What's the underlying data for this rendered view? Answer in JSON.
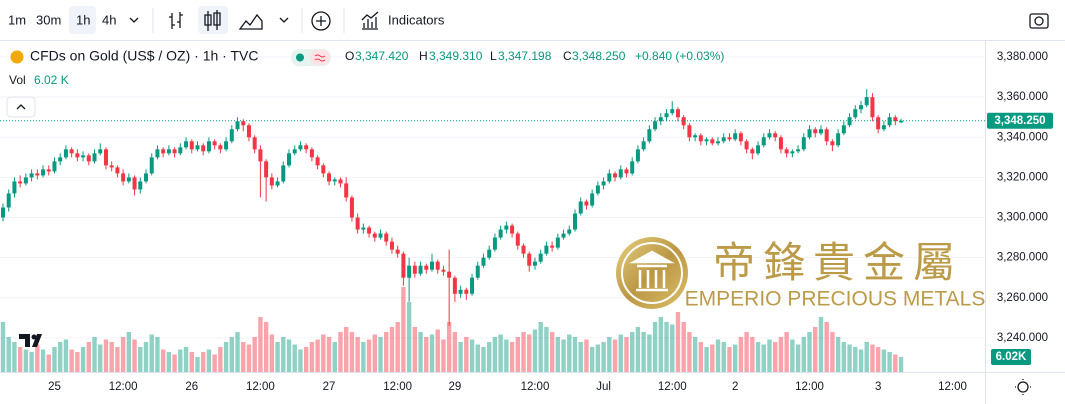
{
  "toolbar": {
    "intervals": [
      "1m",
      "30m",
      "1h",
      "4h"
    ],
    "indicators": "Indicators"
  },
  "watermark": {
    "chinese": "帝鋒貴金屬",
    "english": "EMPERIO PRECIOUS METALS"
  },
  "chart_data": {
    "type": "candlestick",
    "title": "CFDs on Gold (US$ / OZ) · 1h · TVC",
    "legend_ohlc": [
      {
        "label": "O",
        "value": "3,347.420"
      },
      {
        "label": "H",
        "value": "3,349.310"
      },
      {
        "label": "L",
        "value": "3,347.198"
      },
      {
        "label": "C",
        "value": "3,348.250"
      }
    ],
    "change": "+0.840 (+0.03%)",
    "volume_title": "Vol",
    "volume_value_label": "6.02 K",
    "volume_badge": "6.02K",
    "last_price_label": "3,348.250",
    "up_color": "#089981",
    "down_color": "#f23645",
    "volume_up_color": "rgba(8,153,129,0.45)",
    "volume_down_color": "rgba(242,54,69,0.45)",
    "grid": true,
    "ylim": [
      3223,
      3387.5
    ],
    "yticks": [
      {
        "value": 3240,
        "label": "3,240.000"
      },
      {
        "value": 3260,
        "label": "3,260.000"
      },
      {
        "value": 3280,
        "label": "3,280.000"
      },
      {
        "value": 3300,
        "label": "3,300.000"
      },
      {
        "value": 3320,
        "label": "3,320.000"
      },
      {
        "value": 3340,
        "label": "3,340.000"
      },
      {
        "value": 3360,
        "label": "3,360.000"
      },
      {
        "value": 3380,
        "label": "3,380.000"
      }
    ],
    "volume_ylim": [
      0,
      132000
    ],
    "categories": [
      null,
      null,
      null,
      null,
      null,
      null,
      null,
      null,
      null,
      "25",
      null,
      null,
      null,
      null,
      null,
      null,
      null,
      null,
      null,
      null,
      null,
      "12:00",
      null,
      null,
      null,
      null,
      null,
      null,
      null,
      null,
      null,
      null,
      null,
      "26",
      null,
      null,
      null,
      null,
      null,
      null,
      null,
      null,
      null,
      null,
      null,
      "12:00",
      null,
      null,
      null,
      null,
      null,
      null,
      null,
      null,
      null,
      null,
      null,
      "27",
      null,
      null,
      null,
      null,
      null,
      null,
      null,
      null,
      null,
      null,
      null,
      "12:00",
      null,
      null,
      null,
      null,
      null,
      null,
      null,
      null,
      null,
      "29",
      null,
      null,
      null,
      null,
      null,
      null,
      null,
      null,
      null,
      null,
      null,
      null,
      null,
      "12:00",
      null,
      null,
      null,
      null,
      null,
      null,
      null,
      null,
      null,
      null,
      null,
      "Jul",
      null,
      null,
      null,
      null,
      null,
      null,
      null,
      null,
      null,
      null,
      null,
      "12:00",
      null,
      null,
      null,
      null,
      null,
      null,
      null,
      null,
      null,
      null,
      "2",
      null,
      null,
      null,
      null,
      null,
      null,
      null,
      null,
      null,
      null,
      null,
      null,
      "12:00",
      null,
      null,
      null,
      null,
      null,
      null,
      null,
      null,
      null,
      null,
      null,
      "3",
      null,
      null,
      null,
      null,
      null,
      null,
      null,
      null,
      null,
      null,
      null,
      null,
      "12:00",
      null,
      null,
      null
    ],
    "ohlc": [
      [
        3300,
        3307,
        3298,
        3305
      ],
      [
        3305,
        3314,
        3303,
        3312
      ],
      [
        3312,
        3320,
        3310,
        3318
      ],
      [
        3318,
        3321,
        3315,
        3317
      ],
      [
        3317,
        3322,
        3316,
        3320
      ],
      [
        3320,
        3324,
        3318,
        3322
      ],
      [
        3322,
        3324,
        3319,
        3321
      ],
      [
        3321,
        3326,
        3320,
        3324
      ],
      [
        3324,
        3326,
        3321,
        3323
      ],
      [
        3323,
        3330,
        3322,
        3328
      ],
      [
        3328,
        3332,
        3326,
        3330
      ],
      [
        3330,
        3336,
        3329,
        3334
      ],
      [
        3334,
        3335,
        3330,
        3332
      ],
      [
        3332,
        3334,
        3328,
        3330
      ],
      [
        3330,
        3333,
        3328,
        3331
      ],
      [
        3331,
        3332,
        3326,
        3328
      ],
      [
        3328,
        3334,
        3327,
        3332
      ],
      [
        3332,
        3337,
        3331,
        3334
      ],
      [
        3334,
        3335,
        3324,
        3326
      ],
      [
        3326,
        3328,
        3323,
        3325
      ],
      [
        3325,
        3326,
        3320,
        3322
      ],
      [
        3322,
        3324,
        3316,
        3318
      ],
      [
        3318,
        3322,
        3317,
        3320
      ],
      [
        3320,
        3321,
        3311,
        3314
      ],
      [
        3314,
        3320,
        3312,
        3318
      ],
      [
        3318,
        3324,
        3317,
        3322
      ],
      [
        3322,
        3332,
        3321,
        3330
      ],
      [
        3330,
        3336,
        3329,
        3334
      ],
      [
        3334,
        3335,
        3330,
        3332
      ],
      [
        3332,
        3336,
        3331,
        3334
      ],
      [
        3334,
        3335,
        3330,
        3332
      ],
      [
        3332,
        3337,
        3331,
        3335
      ],
      [
        3335,
        3340,
        3334,
        3338
      ],
      [
        3338,
        3339,
        3332,
        3334
      ],
      [
        3334,
        3338,
        3333,
        3336
      ],
      [
        3336,
        3337,
        3331,
        3333
      ],
      [
        3333,
        3340,
        3332,
        3338
      ],
      [
        3338,
        3339,
        3334,
        3336
      ],
      [
        3336,
        3337,
        3332,
        3334
      ],
      [
        3334,
        3340,
        3333,
        3338
      ],
      [
        3338,
        3346,
        3337,
        3344
      ],
      [
        3344,
        3350,
        3343,
        3348
      ],
      [
        3348,
        3349,
        3343,
        3346
      ],
      [
        3346,
        3347,
        3338,
        3340
      ],
      [
        3340,
        3341,
        3332,
        3334
      ],
      [
        3334,
        3336,
        3310,
        3328
      ],
      [
        3328,
        3329,
        3308,
        3320
      ],
      [
        3320,
        3322,
        3314,
        3316
      ],
      [
        3316,
        3320,
        3315,
        3318
      ],
      [
        3318,
        3328,
        3317,
        3326
      ],
      [
        3326,
        3334,
        3325,
        3332
      ],
      [
        3332,
        3336,
        3331,
        3334
      ],
      [
        3334,
        3338,
        3333,
        3336
      ],
      [
        3336,
        3337,
        3332,
        3334
      ],
      [
        3334,
        3335,
        3328,
        3330
      ],
      [
        3330,
        3331,
        3324,
        3326
      ],
      [
        3326,
        3327,
        3320,
        3322
      ],
      [
        3322,
        3323,
        3316,
        3318
      ],
      [
        3318,
        3320,
        3316,
        3319
      ],
      [
        3319,
        3320,
        3315,
        3317
      ],
      [
        3317,
        3320,
        3308,
        3310
      ],
      [
        3310,
        3311,
        3298,
        3300
      ],
      [
        3300,
        3302,
        3292,
        3294
      ],
      [
        3294,
        3297,
        3292,
        3295
      ],
      [
        3295,
        3296,
        3290,
        3292
      ],
      [
        3292,
        3293,
        3288,
        3290
      ],
      [
        3290,
        3294,
        3289,
        3292
      ],
      [
        3292,
        3293,
        3286,
        3288
      ],
      [
        3288,
        3290,
        3282,
        3284
      ],
      [
        3284,
        3286,
        3280,
        3282
      ],
      [
        3282,
        3283,
        3266,
        3270
      ],
      [
        3270,
        3280,
        3258,
        3276
      ],
      [
        3276,
        3278,
        3270,
        3272
      ],
      [
        3272,
        3278,
        3271,
        3276
      ],
      [
        3276,
        3277,
        3272,
        3274
      ],
      [
        3274,
        3282,
        3273,
        3278
      ],
      [
        3278,
        3279,
        3272,
        3274
      ],
      [
        3274,
        3276,
        3271,
        3273
      ],
      [
        3273,
        3284,
        3246,
        3270
      ],
      [
        3270,
        3271,
        3258,
        3262
      ],
      [
        3262,
        3266,
        3260,
        3264
      ],
      [
        3264,
        3265,
        3259,
        3262
      ],
      [
        3262,
        3272,
        3261,
        3270
      ],
      [
        3270,
        3278,
        3269,
        3276
      ],
      [
        3276,
        3282,
        3275,
        3280
      ],
      [
        3280,
        3286,
        3279,
        3284
      ],
      [
        3284,
        3292,
        3283,
        3290
      ],
      [
        3290,
        3296,
        3289,
        3294
      ],
      [
        3294,
        3298,
        3292,
        3296
      ],
      [
        3296,
        3297,
        3290,
        3292
      ],
      [
        3292,
        3293,
        3284,
        3286
      ],
      [
        3286,
        3287,
        3280,
        3282
      ],
      [
        3282,
        3283,
        3273,
        3276
      ],
      [
        3276,
        3280,
        3274,
        3278
      ],
      [
        3278,
        3284,
        3277,
        3282
      ],
      [
        3282,
        3288,
        3281,
        3286
      ],
      [
        3286,
        3288,
        3283,
        3285
      ],
      [
        3285,
        3292,
        3284,
        3290
      ],
      [
        3290,
        3294,
        3289,
        3292
      ],
      [
        3292,
        3296,
        3291,
        3294
      ],
      [
        3294,
        3304,
        3293,
        3302
      ],
      [
        3302,
        3310,
        3301,
        3308
      ],
      [
        3308,
        3309,
        3304,
        3306
      ],
      [
        3306,
        3314,
        3305,
        3312
      ],
      [
        3312,
        3318,
        3311,
        3316
      ],
      [
        3316,
        3320,
        3314,
        3318
      ],
      [
        3318,
        3324,
        3317,
        3322
      ],
      [
        3322,
        3323,
        3318,
        3320
      ],
      [
        3320,
        3326,
        3319,
        3324
      ],
      [
        3324,
        3325,
        3320,
        3322
      ],
      [
        3322,
        3330,
        3321,
        3328
      ],
      [
        3328,
        3336,
        3327,
        3334
      ],
      [
        3334,
        3340,
        3333,
        3338
      ],
      [
        3338,
        3346,
        3337,
        3344
      ],
      [
        3344,
        3350,
        3343,
        3348
      ],
      [
        3348,
        3352,
        3346,
        3350
      ],
      [
        3350,
        3354,
        3348,
        3352
      ],
      [
        3352,
        3358,
        3351,
        3354
      ],
      [
        3354,
        3355,
        3348,
        3350
      ],
      [
        3350,
        3351,
        3344,
        3346
      ],
      [
        3346,
        3347,
        3338,
        3340
      ],
      [
        3340,
        3342,
        3338,
        3341
      ],
      [
        3341,
        3342,
        3336,
        3338
      ],
      [
        3338,
        3340,
        3336,
        3339
      ],
      [
        3339,
        3340,
        3336,
        3337
      ],
      [
        3337,
        3340,
        3336,
        3338
      ],
      [
        3338,
        3342,
        3337,
        3340
      ],
      [
        3340,
        3342,
        3338,
        3339
      ],
      [
        3339,
        3344,
        3338,
        3342
      ],
      [
        3342,
        3343,
        3336,
        3338
      ],
      [
        3338,
        3339,
        3332,
        3334
      ],
      [
        3334,
        3335,
        3329,
        3332
      ],
      [
        3332,
        3338,
        3331,
        3336
      ],
      [
        3336,
        3342,
        3335,
        3340
      ],
      [
        3340,
        3344,
        3339,
        3342
      ],
      [
        3342,
        3343,
        3338,
        3340
      ],
      [
        3340,
        3341,
        3332,
        3334
      ],
      [
        3334,
        3335,
        3330,
        3332
      ],
      [
        3332,
        3334,
        3330,
        3333
      ],
      [
        3333,
        3336,
        3332,
        3334
      ],
      [
        3334,
        3342,
        3333,
        3340
      ],
      [
        3340,
        3346,
        3339,
        3344
      ],
      [
        3344,
        3345,
        3340,
        3342
      ],
      [
        3342,
        3346,
        3341,
        3344
      ],
      [
        3344,
        3345,
        3336,
        3338
      ],
      [
        3338,
        3339,
        3333,
        3336
      ],
      [
        3336,
        3344,
        3335,
        3342
      ],
      [
        3342,
        3348,
        3341,
        3346
      ],
      [
        3346,
        3352,
        3345,
        3350
      ],
      [
        3350,
        3356,
        3349,
        3354
      ],
      [
        3354,
        3358,
        3352,
        3356
      ],
      [
        3356,
        3364,
        3355,
        3360
      ],
      [
        3360,
        3362,
        3348,
        3350
      ],
      [
        3350,
        3351,
        3342,
        3344
      ],
      [
        3344,
        3348,
        3343,
        3346
      ],
      [
        3346,
        3352,
        3345,
        3350
      ],
      [
        3350,
        3351,
        3346,
        3348
      ],
      [
        3347.42,
        3349.31,
        3347.198,
        3348.25
      ],
      null,
      null,
      null,
      null,
      null,
      null,
      null,
      null,
      null,
      null,
      null,
      null
    ],
    "volume": [
      20000,
      14000,
      12000,
      10000,
      9000,
      8000,
      11000,
      9000,
      7000,
      10000,
      12000,
      13000,
      9000,
      8000,
      10000,
      12000,
      14000,
      11000,
      13000,
      12000,
      10000,
      14000,
      16000,
      13000,
      10000,
      12000,
      15000,
      14000,
      9000,
      8000,
      7000,
      9000,
      10000,
      8000,
      6000,
      8000,
      9000,
      7000,
      10000,
      12000,
      14000,
      16000,
      12000,
      11000,
      14000,
      22000,
      20000,
      15000,
      12000,
      14000,
      13000,
      11000,
      9000,
      10000,
      12000,
      13000,
      15000,
      14000,
      12000,
      16000,
      18000,
      16000,
      14000,
      12000,
      13000,
      15000,
      14000,
      16000,
      18000,
      20000,
      34000,
      28000,
      18000,
      16000,
      14000,
      15000,
      17000,
      13000,
      20000,
      16000,
      12000,
      14000,
      13000,
      11000,
      10000,
      12000,
      14000,
      15000,
      13000,
      12000,
      14000,
      16000,
      15000,
      17000,
      20000,
      18000,
      16000,
      14000,
      13000,
      15000,
      14000,
      12000,
      13000,
      10000,
      11000,
      12000,
      14000,
      13000,
      15000,
      14000,
      16000,
      18000,
      16000,
      15000,
      20000,
      22000,
      20000,
      19000,
      24000,
      20000,
      16000,
      14000,
      12000,
      10000,
      11000,
      13000,
      12000,
      10000,
      11000,
      14000,
      16000,
      14000,
      12000,
      11000,
      13000,
      12000,
      14000,
      16000,
      13000,
      11000,
      14000,
      16000,
      18000,
      22000,
      20000,
      16000,
      14000,
      12000,
      11000,
      10000,
      9000,
      12000,
      11000,
      10000,
      9000,
      8000,
      7000,
      6020,
      null,
      null,
      null,
      null,
      null,
      null,
      null,
      null,
      null,
      null,
      null,
      null
    ]
  }
}
